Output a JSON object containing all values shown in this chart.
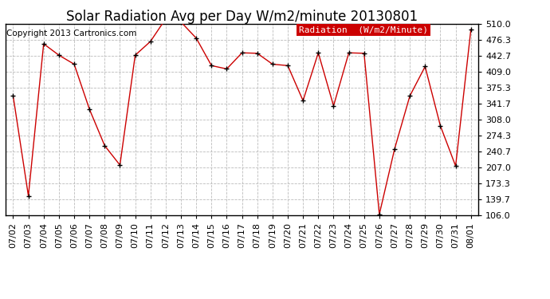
{
  "title": "Solar Radiation Avg per Day W/m2/minute 20130801",
  "copyright": "Copyright 2013 Cartronics.com",
  "legend_label": "Radiation  (W/m2/Minute)",
  "dates": [
    "07/02",
    "07/03",
    "07/04",
    "07/05",
    "07/06",
    "07/07",
    "07/08",
    "07/09",
    "07/10",
    "07/11",
    "07/12",
    "07/13",
    "07/14",
    "07/15",
    "07/16",
    "07/17",
    "07/18",
    "07/19",
    "07/20",
    "07/21",
    "07/22",
    "07/23",
    "07/24",
    "07/25",
    "07/26",
    "07/27",
    "07/28",
    "07/29",
    "07/30",
    "07/31",
    "08/01"
  ],
  "values": [
    358.0,
    147.0,
    468.0,
    444.0,
    425.0,
    330.0,
    253.0,
    212.0,
    444.0,
    473.0,
    521.0,
    514.0,
    480.0,
    422.0,
    415.0,
    449.0,
    448.0,
    425.0,
    422.0,
    348.0,
    449.0,
    337.0,
    449.0,
    448.0,
    108.0,
    246.0,
    358.0,
    420.0,
    295.0,
    210.0,
    498.0
  ],
  "line_color": "#cc0000",
  "marker_color": "#000000",
  "bg_color": "#ffffff",
  "plot_bg_color": "#ffffff",
  "grid_color": "#bbbbbb",
  "legend_bg": "#cc0000",
  "legend_text_color": "#ffffff",
  "border_color": "#000000",
  "ylim_min": 106.0,
  "ylim_max": 510.0,
  "yticks": [
    106.0,
    139.7,
    173.3,
    207.0,
    240.7,
    274.3,
    308.0,
    341.7,
    375.3,
    409.0,
    442.7,
    476.3,
    510.0
  ],
  "title_fontsize": 12,
  "copyright_fontsize": 7.5,
  "tick_fontsize": 8,
  "legend_fontsize": 8
}
